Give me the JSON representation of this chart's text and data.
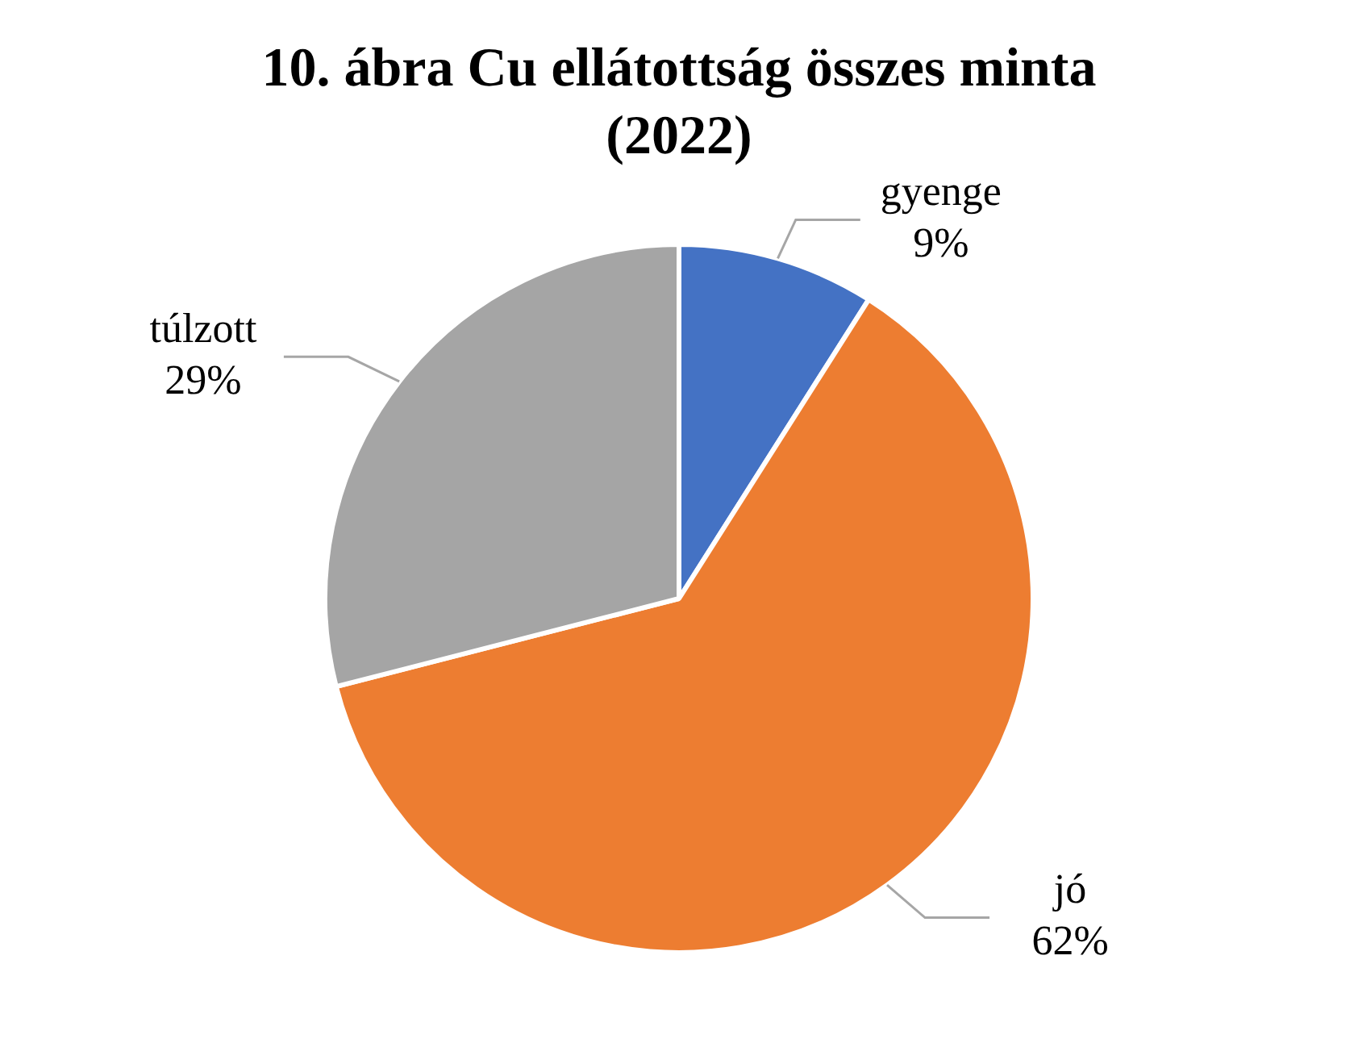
{
  "chart_data": {
    "type": "pie",
    "title": "10. ábra Cu ellátottság összes minta (2022)",
    "categories": [
      "gyenge",
      "jó",
      "túlzott"
    ],
    "values": [
      9,
      62,
      29
    ],
    "colors": [
      "#4472c4",
      "#ed7d31",
      "#a5a5a5"
    ],
    "value_labels": [
      "9%",
      "62%",
      "29%"
    ],
    "legend": false
  }
}
